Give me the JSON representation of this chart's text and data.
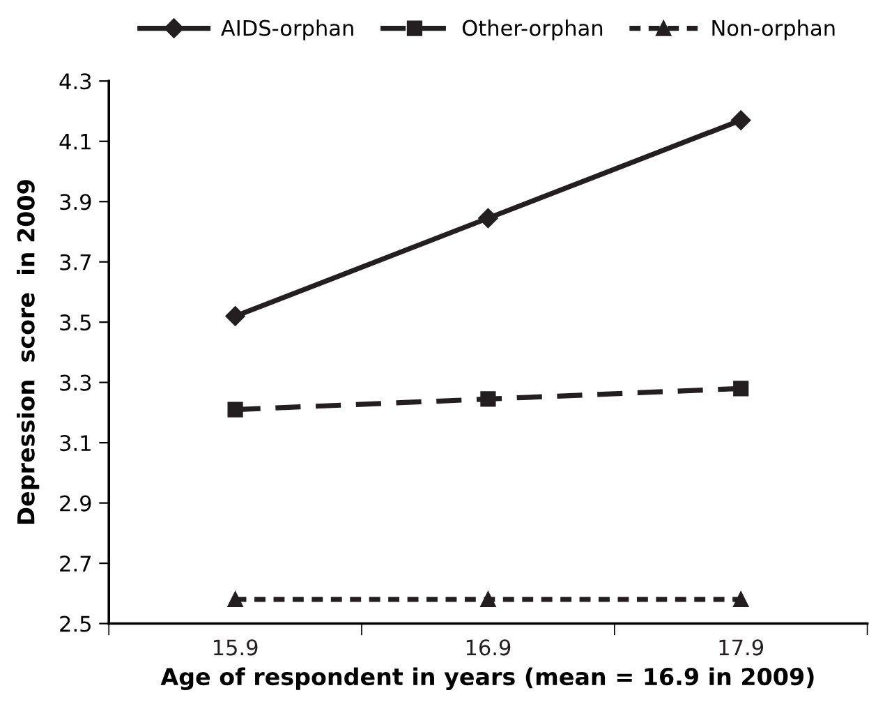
{
  "chart_data": {
    "type": "line",
    "xlabel": "Age of respondent in years (mean = 16.9 in 2009)",
    "ylabel": "Depression  score  in 2009",
    "categories": [
      "15.9",
      "16.9",
      "17.9"
    ],
    "series": [
      {
        "name": "AIDS-orphan",
        "color": "#231f20",
        "marker": "diamond",
        "line_style": "solid",
        "values": [
          3.52,
          3.845,
          4.17
        ]
      },
      {
        "name": "Other-orphan",
        "color": "#231f20",
        "marker": "square",
        "line_style": "dashed",
        "values": [
          3.21,
          3.245,
          3.28
        ]
      },
      {
        "name": "Non-orphan",
        "color": "#231f20",
        "marker": "triangle",
        "line_style": "dotted",
        "values": [
          2.58,
          2.58,
          2.58
        ]
      }
    ],
    "ylim": [
      2.5,
      4.3
    ],
    "yticks": [
      2.5,
      2.7,
      2.9,
      3.1,
      3.3,
      3.5,
      3.7,
      3.9,
      4.1,
      4.3
    ],
    "grid": false,
    "legend": "top"
  }
}
